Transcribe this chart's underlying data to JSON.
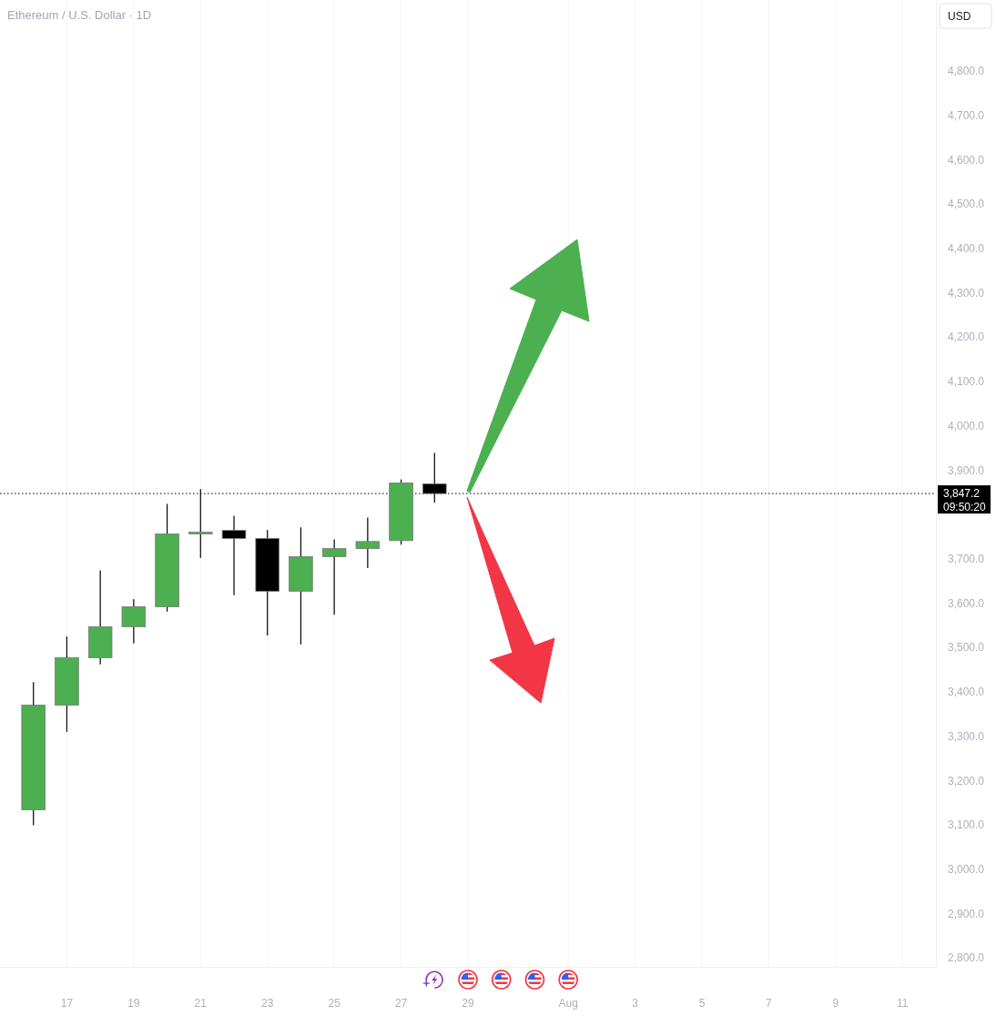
{
  "chart_data": {
    "type": "candlestick",
    "title": "Ethereum / U.S. Dollar · 1D",
    "ylabel": "USD",
    "x": [
      "--07-16",
      "--07-17",
      "--07-18",
      "--07-19",
      "--07-20",
      "--07-21",
      "--07-22",
      "--07-23",
      "--07-24",
      "--07-25",
      "--07-26",
      "--07-27",
      "--07-28"
    ],
    "ohlc": [
      [
        3134,
        3422,
        3099,
        3370
      ],
      [
        3370,
        3525,
        3310,
        3477
      ],
      [
        3477,
        3674,
        3462,
        3547
      ],
      [
        3547,
        3609,
        3509,
        3592
      ],
      [
        3592,
        3824,
        3581,
        3756
      ],
      [
        3756,
        3857,
        3702,
        3760
      ],
      [
        3764,
        3797,
        3618,
        3746
      ],
      [
        3746,
        3765,
        3527,
        3627
      ],
      [
        3627,
        3771,
        3507,
        3705
      ],
      [
        3705,
        3744,
        3574,
        3723
      ],
      [
        3723,
        3793,
        3679,
        3739
      ],
      [
        3741,
        3879,
        3732,
        3871
      ],
      [
        3869,
        3939,
        3827,
        3847.2
      ]
    ],
    "colors": [
      "#4caf50",
      "#4caf50",
      "#4caf50",
      "#4caf50",
      "#4caf50",
      "#4caf50",
      "#000000",
      "#000000",
      "#4caf50",
      "#4caf50",
      "#4caf50",
      "#4caf50",
      "#000000"
    ],
    "xlim": [
      "--07-15",
      "--08-12"
    ],
    "xticks": [
      {
        "value": "--07-17",
        "label": "17"
      },
      {
        "value": "--07-19",
        "label": "19"
      },
      {
        "value": "--07-21",
        "label": "21"
      },
      {
        "value": "--07-23",
        "label": "23"
      },
      {
        "value": "--07-25",
        "label": "25"
      },
      {
        "value": "--07-27",
        "label": "27"
      },
      {
        "value": "--07-29",
        "label": "29"
      },
      {
        "value": "--08-01",
        "label": "Aug"
      },
      {
        "value": "--08-03",
        "label": "3"
      },
      {
        "value": "--08-05",
        "label": "5"
      },
      {
        "value": "--08-07",
        "label": "7"
      },
      {
        "value": "--08-09",
        "label": "9"
      },
      {
        "value": "--08-11",
        "label": "11"
      }
    ],
    "ylim": [
      2780,
      4960
    ],
    "yticks": [
      {
        "value": 2800,
        "label": "2,800.0"
      },
      {
        "value": 2900,
        "label": "2,900.0"
      },
      {
        "value": 3000,
        "label": "3,000.0"
      },
      {
        "value": 3100,
        "label": "3,100.0"
      },
      {
        "value": 3200,
        "label": "3,200.0"
      },
      {
        "value": 3300,
        "label": "3,300.0"
      },
      {
        "value": 3400,
        "label": "3,400.0"
      },
      {
        "value": 3500,
        "label": "3,500.0"
      },
      {
        "value": 3600,
        "label": "3,600.0"
      },
      {
        "value": 3700,
        "label": "3,700.0"
      },
      {
        "value": 3900,
        "label": "3,900.0"
      },
      {
        "value": 4000,
        "label": "4,000.0"
      },
      {
        "value": 4100,
        "label": "4,100.0"
      },
      {
        "value": 4200,
        "label": "4,200.0"
      },
      {
        "value": 4300,
        "label": "4,300.0"
      },
      {
        "value": 4400,
        "label": "4,400.0"
      },
      {
        "value": 4500,
        "label": "4,500.0"
      },
      {
        "value": 4600,
        "label": "4,600.0"
      },
      {
        "value": 4700,
        "label": "4,700.0"
      },
      {
        "value": 4800,
        "label": "4,800.0"
      }
    ],
    "grid": "x",
    "ref_lines": [
      {
        "axis": "y",
        "value": 3847.2,
        "label": "3,847.2",
        "color": "#000000",
        "line_style": "dotted"
      }
    ],
    "annotations": [
      "09:50:20"
    ]
  }
}
